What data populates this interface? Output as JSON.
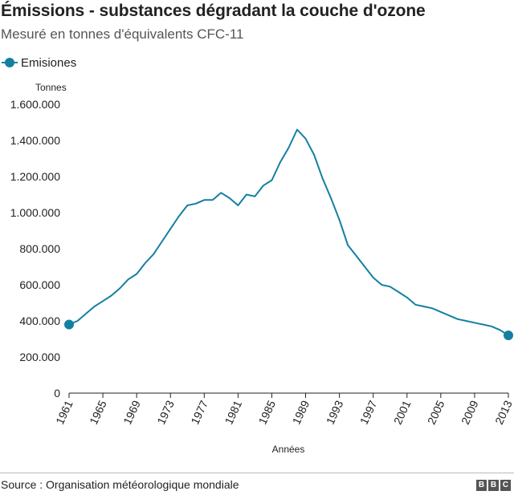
{
  "title": "Émissions - substances dégradant la couche d'ozone",
  "subtitle": "Mesuré en tonnes d'équivalents CFC-11",
  "source": "Source : Organisation météorologique mondiale",
  "logo": [
    "B",
    "B",
    "C"
  ],
  "colors": {
    "line": "#1380a1",
    "text": "#222222",
    "grid": "#dddddd"
  },
  "chart_data": {
    "type": "line",
    "title": "Émissions - substances dégradant la couche d'ozone",
    "subtitle": "Mesuré en tonnes d'équivalents CFC-11",
    "ylabel": "Tonnes",
    "xlabel": "Années",
    "ylim": [
      0,
      1600000
    ],
    "xlim": [
      1961,
      2013
    ],
    "y_ticks": [
      0,
      200000,
      400000,
      600000,
      800000,
      1000000,
      1200000,
      1400000,
      1600000
    ],
    "y_tick_labels": [
      "0",
      "200.000",
      "400.000",
      "600.000",
      "800.000",
      "1.000.000",
      "1.200.000",
      "1.400.000",
      "1.600.000"
    ],
    "x_ticks": [
      "1961",
      "1965",
      "1969",
      "1973",
      "1977",
      "1981",
      "1985",
      "1989",
      "1993",
      "1997",
      "2001",
      "2005",
      "2009",
      "2013"
    ],
    "grid": false,
    "legend_position": "top-left",
    "series": [
      {
        "name": "Emisiones",
        "x": [
          1961,
          1962,
          1963,
          1964,
          1965,
          1966,
          1967,
          1968,
          1969,
          1970,
          1971,
          1972,
          1973,
          1974,
          1975,
          1976,
          1977,
          1978,
          1979,
          1980,
          1981,
          1982,
          1983,
          1984,
          1985,
          1986,
          1987,
          1988,
          1989,
          1990,
          1991,
          1992,
          1993,
          1994,
          1995,
          1996,
          1997,
          1998,
          1999,
          2000,
          2001,
          2002,
          2003,
          2004,
          2005,
          2006,
          2007,
          2008,
          2009,
          2010,
          2011,
          2012,
          2013
        ],
        "values": [
          380000,
          400000,
          440000,
          480000,
          510000,
          540000,
          580000,
          630000,
          660000,
          720000,
          770000,
          840000,
          910000,
          980000,
          1040000,
          1050000,
          1070000,
          1070000,
          1110000,
          1080000,
          1040000,
          1100000,
          1090000,
          1150000,
          1180000,
          1280000,
          1360000,
          1460000,
          1410000,
          1320000,
          1190000,
          1080000,
          960000,
          820000,
          760000,
          700000,
          640000,
          600000,
          590000,
          560000,
          530000,
          490000,
          480000,
          470000,
          450000,
          430000,
          410000,
          400000,
          390000,
          380000,
          370000,
          350000,
          320000
        ]
      }
    ]
  }
}
